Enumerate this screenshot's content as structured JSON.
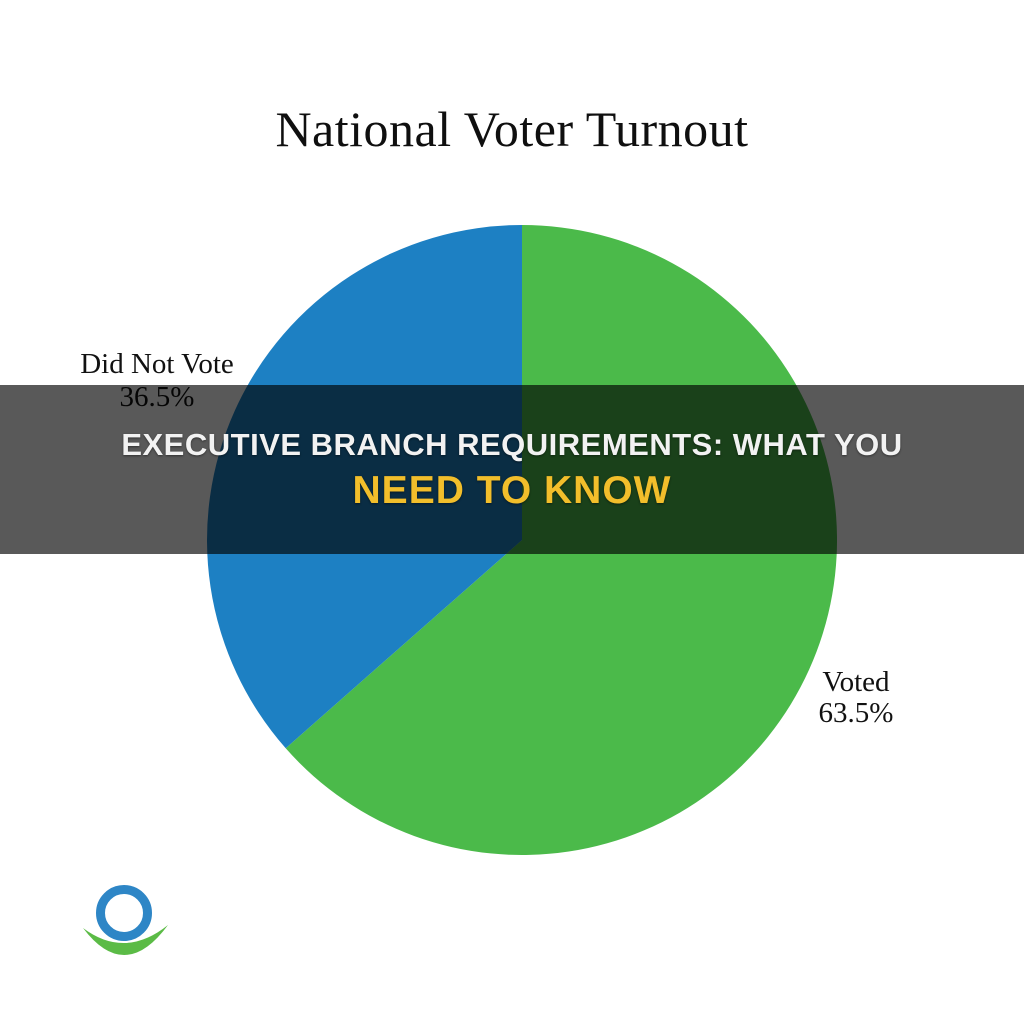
{
  "page": {
    "background": "#ffffff"
  },
  "title": "National Voter Turnout",
  "banner": {
    "line1": "EXECUTIVE BRANCH REQUIREMENTS: WHAT YOU",
    "line2": "NEED TO KNOW",
    "line1_color": "#f2f2f2",
    "line2_color": "#f2be2b",
    "overlay_color": "rgba(0, 0, 0, 0.65)"
  },
  "chart_data": {
    "type": "pie",
    "title": "National Voter Turnout",
    "slices": [
      {
        "label": "Voted",
        "value": 63.5,
        "display": "63.5%",
        "color": "#4bba4a"
      },
      {
        "label": "Did Not Vote",
        "value": 36.5,
        "display": "36.5%",
        "color": "#1d80c3"
      }
    ],
    "start_angle_deg": -90,
    "direction": "clockwise",
    "radius_px": 315,
    "legend_position": "none (direct labels beside slices)"
  },
  "labels": {
    "did_not_vote": {
      "name": "Did Not Vote",
      "percent": "36.5%"
    },
    "voted": {
      "name": "Voted",
      "percent": "63.5%"
    }
  },
  "logo": {
    "ring_color": "#2e86c6",
    "swoosh_color": "#5bbb46"
  }
}
